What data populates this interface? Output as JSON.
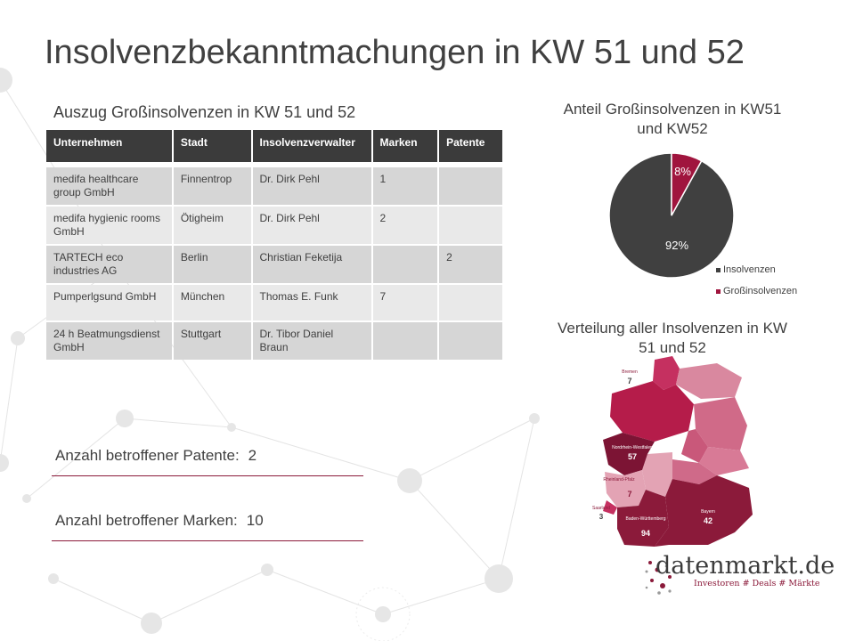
{
  "title": "Insolvenzbekanntmachungen in KW 51 und 52",
  "table": {
    "title": "Auszug Großinsolvenzen in KW 51 und 52",
    "columns": [
      "Unternehmen",
      "Stadt",
      "Insolvenzverwalter",
      "Marken",
      "Patente"
    ],
    "rows": [
      [
        "medifa healthcare group GmbH",
        "Finnentrop",
        "Dr. Dirk Pehl",
        "1",
        ""
      ],
      [
        "medifa hygienic rooms GmbH",
        "Ötigheim",
        "Dr. Dirk Pehl",
        "2",
        ""
      ],
      [
        "TARTECH eco industries AG",
        "Berlin",
        "Christian Feketija",
        "",
        "2"
      ],
      [
        "Pumperlgsund GmbH",
        "München",
        "Thomas E. Funk",
        "7",
        ""
      ],
      [
        "24 h Beatmungsdienst GmbH",
        "Stuttgart",
        "Dr. Tibor Daniel Braun",
        "",
        ""
      ]
    ]
  },
  "stats": {
    "patents_label": "Anzahl betroffener Patente:",
    "patents_value": "2",
    "marks_label": "Anzahl betroffener Marken:",
    "marks_value": "10"
  },
  "chart_data": [
    {
      "type": "pie",
      "title": "Anteil Großinsolvenzen in KW51 und KW52",
      "categories": [
        "Insolvenzen",
        "Großinsolvenzen"
      ],
      "values": [
        92,
        8
      ],
      "labels": [
        "92%",
        "8%"
      ],
      "colors": [
        "#404040",
        "#a0153e"
      ],
      "legend": "right"
    },
    {
      "type": "map",
      "title": "Verteilung aller Insolvenzen in KW 51 und 52",
      "regions": [
        {
          "name": "Bremen",
          "value": 7
        },
        {
          "name": "Nordrhein-Westfalen",
          "value": 57
        },
        {
          "name": "Rheinland-Pfalz",
          "value": 7
        },
        {
          "name": "Saarland",
          "value": 3
        },
        {
          "name": "Baden-Württemberg",
          "value": 94
        },
        {
          "name": "Bayern",
          "value": 42
        }
      ]
    }
  ],
  "logo": {
    "name": "datenmarkt.de",
    "tagline": "Investoren # Deals # Märkte"
  }
}
